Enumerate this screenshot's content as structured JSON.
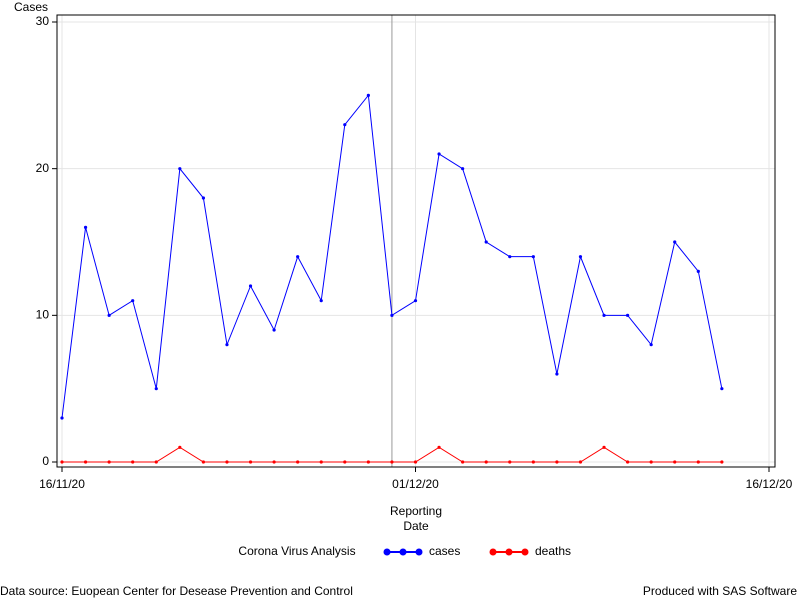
{
  "chart_data": {
    "type": "line",
    "y_label": "Cases",
    "x_label": [
      "Reporting",
      "Date"
    ],
    "legend_title": "Corona Virus Analysis",
    "x": [
      "2020-11-16",
      "2020-11-17",
      "2020-11-18",
      "2020-11-19",
      "2020-11-20",
      "2020-11-21",
      "2020-11-22",
      "2020-11-23",
      "2020-11-24",
      "2020-11-25",
      "2020-11-26",
      "2020-11-27",
      "2020-11-28",
      "2020-11-29",
      "2020-11-30",
      "2020-12-01",
      "2020-12-02",
      "2020-12-03",
      "2020-12-04",
      "2020-12-05",
      "2020-12-06",
      "2020-12-07",
      "2020-12-08",
      "2020-12-09",
      "2020-12-10",
      "2020-12-11",
      "2020-12-12",
      "2020-12-13",
      "2020-12-14"
    ],
    "series": [
      {
        "name": "cases",
        "color": "#0000ff",
        "values": [
          3,
          16,
          10,
          11,
          5,
          20,
          18,
          8,
          12,
          9,
          14,
          11,
          23,
          25,
          10,
          11,
          21,
          20,
          15,
          14,
          14,
          6,
          14,
          10,
          10,
          8,
          15,
          13,
          5
        ]
      },
      {
        "name": "deaths",
        "color": "#ff0000",
        "values": [
          0,
          0,
          0,
          0,
          0,
          1,
          0,
          0,
          0,
          0,
          0,
          0,
          0,
          0,
          0,
          0,
          1,
          0,
          0,
          0,
          0,
          0,
          0,
          1,
          0,
          0,
          0,
          0,
          0
        ]
      }
    ],
    "xlim": [
      "2020-11-16",
      "2020-12-16"
    ],
    "xticks": [
      {
        "value": "2020-11-16",
        "label": "16/11/20"
      },
      {
        "value": "2020-12-01",
        "label": "01/12/20"
      },
      {
        "value": "2020-12-16",
        "label": "16/12/20"
      }
    ],
    "reference_line": "2020-11-30",
    "ylim": [
      0,
      30
    ],
    "yticks": [
      0,
      10,
      20,
      30
    ],
    "grid": true,
    "footnote_left": "Data source: Euopean Center for Desease Prevention and Control",
    "footnote_right": "Produced with SAS Software"
  }
}
